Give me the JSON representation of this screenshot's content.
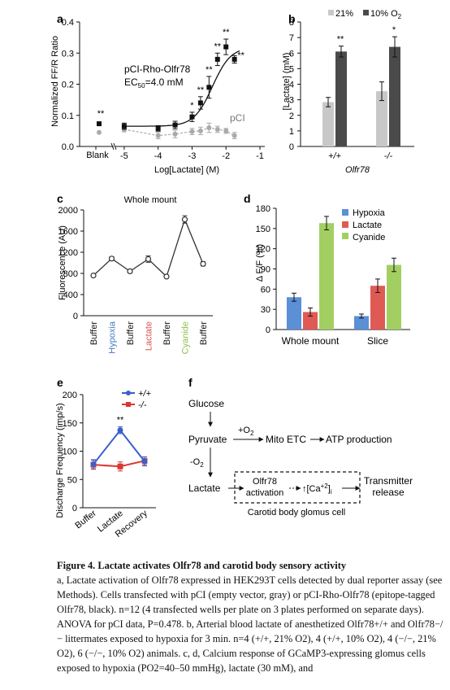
{
  "panels": {
    "a": {
      "letter": "a",
      "ylabel": "Normalized FF/R Ratio",
      "xlabel": "Log[Lactate] (M)",
      "blank_label": "Blank",
      "blank_sig": "**",
      "ann_title": "pCI-Rho-Olfr78",
      "ann_ec50": "EC50=4.0 mM",
      "ann_pci": "pCI",
      "sig_labels": [
        "*",
        "**",
        "**",
        "**",
        "**",
        "**"
      ]
    },
    "b": {
      "letter": "b",
      "ylabel": "[Lactate] (mM)",
      "xlabel": "Olfr78",
      "legend": [
        "21%",
        "10% O2"
      ]
    },
    "c": {
      "letter": "c",
      "title": "Whole mount",
      "ylabel": "Fluorescence (AU)"
    },
    "d": {
      "letter": "d",
      "ylabel": "Δ F/F (%)",
      "legend": [
        "Hypoxia",
        "Lactate",
        "Cyanide"
      ]
    },
    "e": {
      "letter": "e",
      "ylabel": "Discharge Frequency (imp/s)",
      "legend": [
        "+/+",
        "-/-"
      ],
      "sig": "**"
    },
    "f": {
      "letter": "f",
      "glucose": "Glucose",
      "pyruvate": "Pyruvate",
      "plus_o2": "+O2",
      "mito": "Mito ETC",
      "atp": "ATP production",
      "minus_o2": "-O2",
      "lactate": "Lactate",
      "olfr78": "Olfr78",
      "activation": "activation",
      "ca": "↑[Ca+2]i",
      "transmitter": "Transmitter",
      "release": "release",
      "cell": "Carotid body glomus cell"
    }
  },
  "colors": {
    "black_series": "#111111",
    "gray_series": "#aaaaaa",
    "bar_light": "#c8c8c8",
    "bar_dark": "#4a4a4a",
    "hypoxia": "#5b8fd6",
    "lactate": "#e05a55",
    "cyanide": "#a3cf62",
    "ko_red": "#d9382f",
    "wt_blue": "#3a5fcc"
  },
  "chart_data": [
    {
      "panel": "a",
      "type": "scatter",
      "xlabel": "Log[Lactate] (M)",
      "ylabel": "Normalized FF/R Ratio",
      "xlim": [
        -5.5,
        -1
      ],
      "ylim": [
        0,
        0.4
      ],
      "xticks": [
        -5,
        -4,
        -3,
        -2,
        -1
      ],
      "yticks": [
        0,
        0.1,
        0.2,
        0.3,
        0.4
      ],
      "ytick_labels": [
        "0.0",
        "0.1",
        "0.2",
        "0.3",
        "0.4"
      ],
      "blank": {
        "pci_rho": 0.073,
        "pci": 0.045
      },
      "series": [
        {
          "name": "pCI-Rho-Olfr78",
          "color": "#111111",
          "x": [
            -5,
            -4,
            -3.5,
            -3,
            -2.75,
            -2.5,
            -2.25,
            -2,
            -1.75
          ],
          "y": [
            0.065,
            0.058,
            0.069,
            0.095,
            0.14,
            0.19,
            0.28,
            0.32,
            0.28
          ],
          "err": [
            0.01,
            0.009,
            0.012,
            0.015,
            0.02,
            0.035,
            0.02,
            0.025,
            0.012
          ]
        },
        {
          "name": "pCI",
          "color": "#aaaaaa",
          "x": [
            -5,
            -4,
            -3.5,
            -3,
            -2.75,
            -2.5,
            -2.25,
            -2,
            -1.75
          ],
          "y": [
            0.055,
            0.035,
            0.04,
            0.048,
            0.05,
            0.06,
            0.055,
            0.05,
            0.035
          ],
          "err": [
            0.008,
            0.01,
            0.012,
            0.01,
            0.012,
            0.015,
            0.01,
            0.008,
            0.01
          ]
        }
      ]
    },
    {
      "panel": "b",
      "type": "bar",
      "categories": [
        "+/+",
        "-/-"
      ],
      "ylim": [
        0,
        8
      ],
      "yticks": [
        0,
        1,
        2,
        3,
        4,
        5,
        6,
        7,
        8
      ],
      "series": [
        {
          "name": "21%",
          "values": [
            2.85,
            3.55
          ],
          "err": [
            0.3,
            0.6
          ]
        },
        {
          "name": "10% O2",
          "values": [
            6.1,
            6.4
          ],
          "err": [
            0.35,
            0.65
          ]
        }
      ],
      "sig": [
        "**",
        "*"
      ]
    },
    {
      "panel": "c",
      "type": "line",
      "title": "Whole mount",
      "ylabel": "Fluorescence (AU)",
      "categories": [
        "Buffer",
        "Hypoxia",
        "Buffer",
        "Lactate",
        "Buffer",
        "Cyanide",
        "Buffer"
      ],
      "category_colors": [
        "#111111",
        "#4a79c2",
        "#111111",
        "#d9534f",
        "#111111",
        "#8fbf4d",
        "#111111"
      ],
      "ylim": [
        0,
        2000
      ],
      "yticks": [
        0,
        400,
        800,
        1200,
        1600,
        2000
      ],
      "values": [
        760,
        1080,
        840,
        1070,
        740,
        1820,
        980
      ],
      "err": [
        20,
        35,
        30,
        60,
        25,
        70,
        40
      ]
    },
    {
      "panel": "d",
      "type": "bar",
      "categories": [
        "Whole mount",
        "Slice"
      ],
      "ylim": [
        0,
        180
      ],
      "yticks": [
        0,
        30,
        60,
        90,
        120,
        150,
        180
      ],
      "series": [
        {
          "name": "Hypoxia",
          "values": [
            48,
            20
          ],
          "err": [
            6,
            3
          ]
        },
        {
          "name": "Lactate",
          "values": [
            26,
            65
          ],
          "err": [
            6,
            10
          ]
        },
        {
          "name": "Cyanide",
          "values": [
            158,
            96
          ],
          "err": [
            10,
            10
          ]
        }
      ]
    },
    {
      "panel": "e",
      "type": "line",
      "ylabel": "Discharge Frequency (imp/s)",
      "categories": [
        "Buffer",
        "Lactate",
        "Recovery"
      ],
      "ylim": [
        0,
        200
      ],
      "yticks": [
        0,
        50,
        100,
        150,
        200
      ],
      "series": [
        {
          "name": "+/+",
          "values": [
            77,
            137,
            82
          ],
          "err": [
            8,
            6,
            8
          ]
        },
        {
          "name": "-/-",
          "values": [
            76,
            73,
            83
          ],
          "err": [
            8,
            8,
            7
          ]
        }
      ]
    }
  ],
  "caption": {
    "title": "Figure 4. Lactate activates Olfr78 and carotid body sensory activity",
    "text": "a, Lactate activation of Olfr78 expressed in HEK293T cells detected by dual reporter assay (see Methods). Cells transfected with pCI (empty vector, gray) or pCI-Rho-Olfr78 (epitope-tagged Olfr78, black). n=12 (4 transfected wells per plate on 3 plates performed on separate days). ANOVA for pCI data, P=0.478. b, Arterial blood lactate of anesthetized Olfr78+/+ and Olfr78−/− littermates exposed to hypoxia for 3 min. n=4 (+/+, 21% O2), 4 (+/+, 10% O2), 4 (−/−, 21% O2), 6 (−/−, 10% O2) animals. c, d, Calcium response of GCaMP3-expressing glomus cells exposed to hypoxia (PO2=40–50 mmHg), lactate (30 mM), and"
  }
}
